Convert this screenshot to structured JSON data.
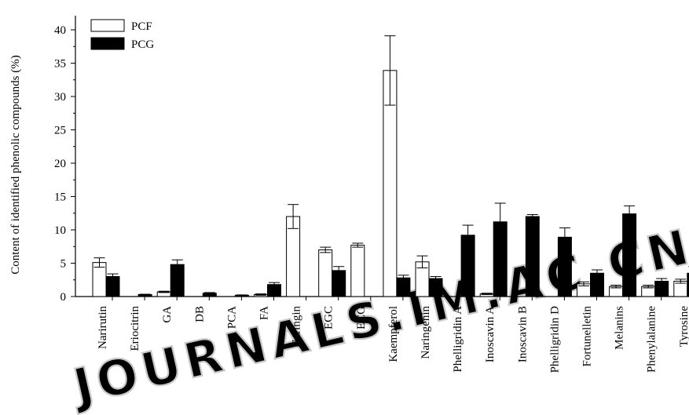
{
  "chart_data": {
    "type": "bar",
    "ylabel": "Content of identified phenolic compounds (%)",
    "xlabel": "",
    "ylim": [
      0,
      42
    ],
    "yticks": [
      0,
      5,
      10,
      15,
      20,
      25,
      30,
      35,
      40
    ],
    "legend_position": "top-left",
    "categories": [
      "Narirutin",
      "Eriocitrin",
      "GA",
      "DB",
      "PCA",
      "FA",
      "Naringin",
      "EGC",
      "ECG",
      "Kaempferol",
      "Naringenin",
      "Phelligridin A",
      "Inoscavin A",
      "Inoscavin B",
      "Phelligridin D",
      "Fortunelletin",
      "Melanins",
      "Phenylalanine",
      "Tyrosine"
    ],
    "series": [
      {
        "name": "PCF",
        "fill": "#ffffff",
        "values": [
          5.1,
          0,
          0.7,
          0,
          0,
          0.3,
          12.0,
          7.0,
          7.7,
          33.9,
          5.2,
          0,
          0.4,
          0,
          0,
          1.9,
          1.5,
          1.5,
          2.3
        ],
        "errors": [
          0.7,
          0,
          0.1,
          0,
          0,
          0.1,
          1.8,
          0.4,
          0.3,
          5.2,
          0.9,
          0,
          0.1,
          0,
          0,
          0.3,
          0.2,
          0.2,
          0.3
        ]
      },
      {
        "name": "PCG",
        "fill": "#000000",
        "values": [
          3.0,
          0.3,
          4.8,
          0.5,
          0.2,
          1.8,
          0,
          3.9,
          0,
          2.8,
          2.7,
          9.2,
          11.2,
          12.0,
          8.9,
          3.5,
          12.4,
          2.3,
          3.5
        ],
        "errors": [
          0.4,
          0.05,
          0.7,
          0.1,
          0.05,
          0.3,
          0,
          0.6,
          0,
          0.4,
          0.3,
          1.5,
          2.8,
          0.3,
          1.4,
          0.5,
          1.2,
          0.4,
          1.0
        ]
      }
    ]
  },
  "watermark": {
    "text": "JOURNALS.IM.AC.CN",
    "color": "#c8c8c8"
  }
}
